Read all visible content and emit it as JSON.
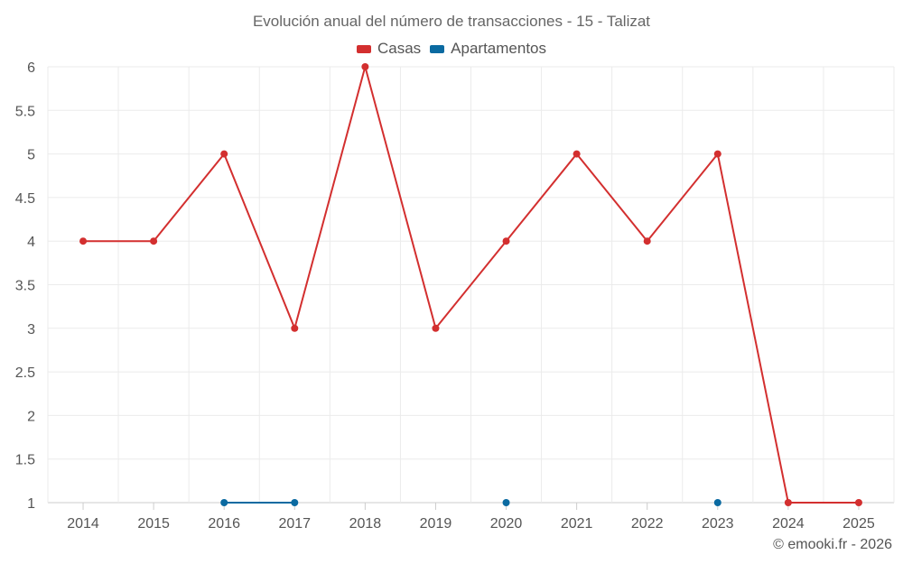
{
  "chart_data": {
    "type": "line",
    "title": "Evolución anual del número de transacciones - 15 - Talizat",
    "categories": [
      "2014",
      "2015",
      "2016",
      "2017",
      "2018",
      "2019",
      "2020",
      "2021",
      "2022",
      "2023",
      "2024",
      "2025"
    ],
    "series": [
      {
        "name": "Casas",
        "color": "#d32f2f",
        "values": [
          4,
          4,
          5,
          3,
          6,
          3,
          4,
          5,
          4,
          5,
          1,
          1
        ]
      },
      {
        "name": "Apartamentos",
        "color": "#0a6aa1",
        "values": [
          null,
          null,
          1,
          1,
          null,
          null,
          1,
          null,
          null,
          1,
          null,
          null
        ]
      }
    ],
    "ylim": [
      1,
      6
    ],
    "yticks": [
      "1",
      "1.5",
      "2",
      "2.5",
      "3",
      "3.5",
      "4",
      "4.5",
      "5",
      "5.5",
      "6"
    ],
    "grid": true,
    "legend": "top-center",
    "xlabel": "",
    "ylabel": ""
  },
  "credit": "© emooki.fr - 2026"
}
